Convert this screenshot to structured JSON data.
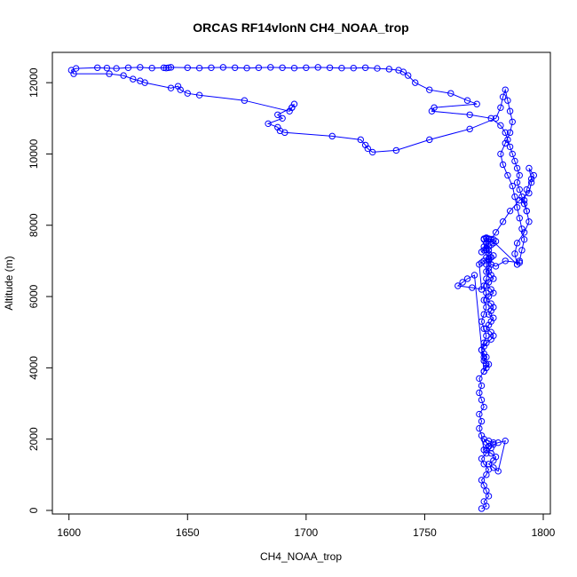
{
  "chart_data": {
    "type": "line",
    "title": "ORCAS RF14vlonN CH4_NOAA_trop",
    "xlabel": "CH4_NOAA_trop",
    "ylabel": "Altitude (m)",
    "xlim": [
      1593,
      1803
    ],
    "ylim": [
      -100,
      12850
    ],
    "xticks": [
      1600,
      1650,
      1700,
      1750,
      1800
    ],
    "yticks": [
      0,
      2000,
      4000,
      6000,
      8000,
      10000,
      12000
    ],
    "grid": false,
    "color": "#0000ff",
    "marker": "open-circle",
    "x": [
      1774,
      1776,
      1775,
      1777,
      1776,
      1775,
      1774,
      1776,
      1777,
      1775,
      1774,
      1776,
      1778,
      1776,
      1775,
      1777,
      1779,
      1777,
      1776,
      1778,
      1780,
      1779,
      1777,
      1779,
      1781,
      1784,
      1781,
      1779,
      1777,
      1775,
      1774,
      1773,
      1774,
      1773,
      1775,
      1774,
      1773,
      1774,
      1773,
      1775,
      1776,
      1775,
      1774,
      1775,
      1776,
      1775,
      1774,
      1775,
      1776,
      1775,
      1776,
      1775,
      1776,
      1777,
      1776,
      1778,
      1777,
      1776,
      1775,
      1776,
      1777,
      1776,
      1775,
      1776,
      1777,
      1776,
      1777,
      1778,
      1777,
      1776,
      1778,
      1779,
      1777,
      1776,
      1778,
      1779,
      1777,
      1776,
      1778,
      1779,
      1778,
      1777,
      1779,
      1778,
      1777,
      1776,
      1778,
      1779,
      1778,
      1776,
      1775,
      1774,
      1775,
      1776,
      1775,
      1777,
      1776,
      1775,
      1771,
      1768,
      1766,
      1764,
      1770,
      1774,
      1773,
      1774,
      1775,
      1777,
      1778,
      1779,
      1777,
      1778,
      1780,
      1784,
      1790,
      1789,
      1778,
      1775,
      1776,
      1777,
      1778,
      1779,
      1780,
      1779,
      1778,
      1777,
      1776,
      1775,
      1774,
      1780,
      1783,
      1786,
      1790,
      1794,
      1795,
      1796,
      1794,
      1795,
      1793,
      1792,
      1793,
      1794,
      1792,
      1789,
      1788,
      1789,
      1790,
      1791,
      1792,
      1791,
      1790,
      1789,
      1788,
      1787,
      1785,
      1783,
      1782,
      1784,
      1786,
      1787,
      1786,
      1785,
      1784,
      1783,
      1782,
      1780,
      1769,
      1752,
      1738,
      1728,
      1726,
      1725,
      1723,
      1711,
      1691,
      1689,
      1688,
      1684,
      1690,
      1688,
      1694,
      1695,
      1694,
      1693,
      1674,
      1655,
      1650,
      1647,
      1646,
      1643,
      1632,
      1630,
      1627,
      1623,
      1617,
      1602,
      1601,
      1603,
      1612,
      1616,
      1620,
      1625,
      1630,
      1635,
      1640,
      1641,
      1642,
      1643,
      1650,
      1655,
      1660,
      1665,
      1670,
      1675,
      1680,
      1685,
      1690,
      1695,
      1700,
      1705,
      1710,
      1715,
      1720,
      1725,
      1730,
      1735,
      1739,
      1741,
      1743,
      1746,
      1752,
      1761,
      1768,
      1772,
      1754,
      1753,
      1769,
      1778,
      1782,
      1784,
      1785,
      1786,
      1787,
      1788,
      1789,
      1790,
      1789,
      1790,
      1791,
      1792,
      1793
    ],
    "y": [
      50,
      120,
      250,
      400,
      550,
      700,
      850,
      1000,
      1150,
      1300,
      1450,
      1600,
      1750,
      1900,
      2000,
      1950,
      1900,
      1800,
      1700,
      1600,
      1500,
      1400,
      1300,
      1200,
      1100,
      1950,
      1900,
      1850,
      1800,
      1700,
      2100,
      2300,
      2500,
      2700,
      2900,
      3100,
      3300,
      3500,
      3700,
      3900,
      4100,
      4300,
      4500,
      4700,
      4900,
      5100,
      5300,
      5500,
      5700,
      5900,
      6100,
      6300,
      6500,
      6700,
      6900,
      7100,
      7300,
      7500,
      7600,
      7650,
      7600,
      7500,
      7400,
      7300,
      7200,
      7100,
      7000,
      6900,
      6800,
      6700,
      6600,
      6500,
      6400,
      6300,
      6200,
      6100,
      6000,
      5900,
      5800,
      5700,
      5600,
      5500,
      5400,
      5300,
      5200,
      5100,
      5000,
      4900,
      4800,
      4700,
      4600,
      4500,
      4400,
      4300,
      4200,
      4100,
      4000,
      3900,
      6600,
      6500,
      6400,
      6300,
      6250,
      6200,
      6900,
      6950,
      7000,
      7050,
      7100,
      7150,
      7050,
      6900,
      6850,
      7000,
      6950,
      6900,
      7600,
      7620,
      7630,
      7620,
      7610,
      7600,
      7550,
      7500,
      7450,
      7400,
      7350,
      7300,
      7250,
      7800,
      8100,
      8400,
      8700,
      8900,
      9200,
      9400,
      9600,
      9300,
      9000,
      8700,
      8400,
      8100,
      7800,
      7500,
      7200,
      6900,
      7000,
      7300,
      7600,
      7900,
      8200,
      8500,
      8800,
      9100,
      9400,
      9700,
      10000,
      10300,
      10600,
      10900,
      11200,
      11500,
      11800,
      11600,
      11300,
      11000,
      10700,
      10400,
      10100,
      10050,
      10150,
      10250,
      10400,
      10500,
      10600,
      10650,
      10750,
      10850,
      11000,
      11100,
      11300,
      11400,
      11300,
      11200,
      11500,
      11650,
      11700,
      11800,
      11900,
      11850,
      12000,
      12050,
      12100,
      12200,
      12250,
      12250,
      12350,
      12400,
      12420,
      12410,
      12400,
      12420,
      12430,
      12410,
      12420,
      12410,
      12420,
      12430,
      12420,
      12410,
      12420,
      12430,
      12420,
      12410,
      12420,
      12430,
      12420,
      12410,
      12420,
      12430,
      12420,
      12410,
      12410,
      12420,
      12400,
      12380,
      12350,
      12300,
      12200,
      12000,
      11800,
      11700,
      11500,
      11400,
      11300,
      11200,
      11100,
      11000,
      10800,
      10600,
      10400,
      10200,
      10000,
      9800,
      9600,
      9400,
      9200,
      9000,
      8800,
      8600,
      8400
    ]
  }
}
